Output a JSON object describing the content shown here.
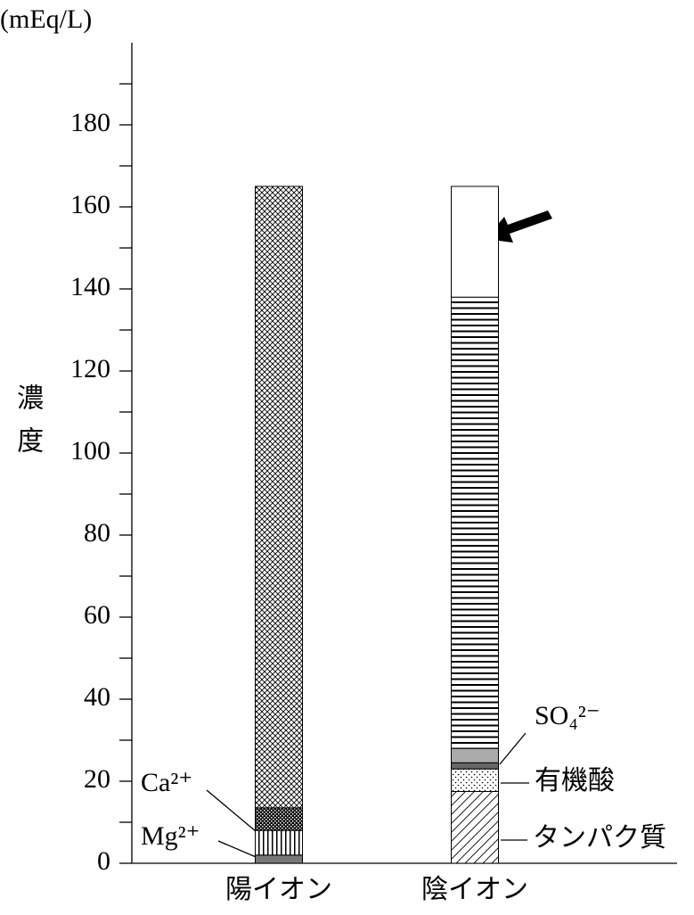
{
  "chart_data": {
    "type": "stacked-bar",
    "y_label_unit": "(mEq/L)",
    "y_label": "濃度",
    "categories": [
      "陽イオン",
      "陰イオン"
    ],
    "series": [
      {
        "name": "Mg²⁺",
        "pattern": "solid",
        "color": "#777777",
        "values": [
          2,
          null
        ]
      },
      {
        "name": "Ca²⁺",
        "pattern": "vstripe",
        "color": "#000000",
        "values": [
          6,
          null
        ]
      },
      {
        "pattern": "checker",
        "color": "#000000",
        "values": [
          5.5,
          null
        ]
      },
      {
        "pattern": "crosshatch",
        "color": "#000000",
        "values": [
          151.5,
          null
        ]
      },
      {
        "name": "タンパク質",
        "pattern": "diagonal",
        "color": "#000000",
        "values": [
          null,
          17.5
        ]
      },
      {
        "name": "有機酸",
        "pattern": "dots",
        "color": "#000000",
        "values": [
          null,
          5.5
        ]
      },
      {
        "name": "SO₄²⁻",
        "pattern": "solid",
        "color": "#666666",
        "values": [
          null,
          1.5
        ]
      },
      {
        "pattern": "solid",
        "color": "#aaaaaa",
        "values": [
          null,
          3.5
        ]
      },
      {
        "pattern": "hstripe",
        "color": "#000000",
        "values": [
          null,
          110
        ]
      },
      {
        "pattern": "solid",
        "color": "#ffffff",
        "values": [
          null,
          27
        ]
      }
    ],
    "ylim": [
      0,
      200
    ],
    "yticks": [
      0,
      20,
      40,
      60,
      80,
      100,
      120,
      140,
      160,
      180
    ],
    "yminorticks": [
      10,
      30,
      50,
      70,
      90,
      110,
      130,
      150,
      170,
      190
    ]
  }
}
